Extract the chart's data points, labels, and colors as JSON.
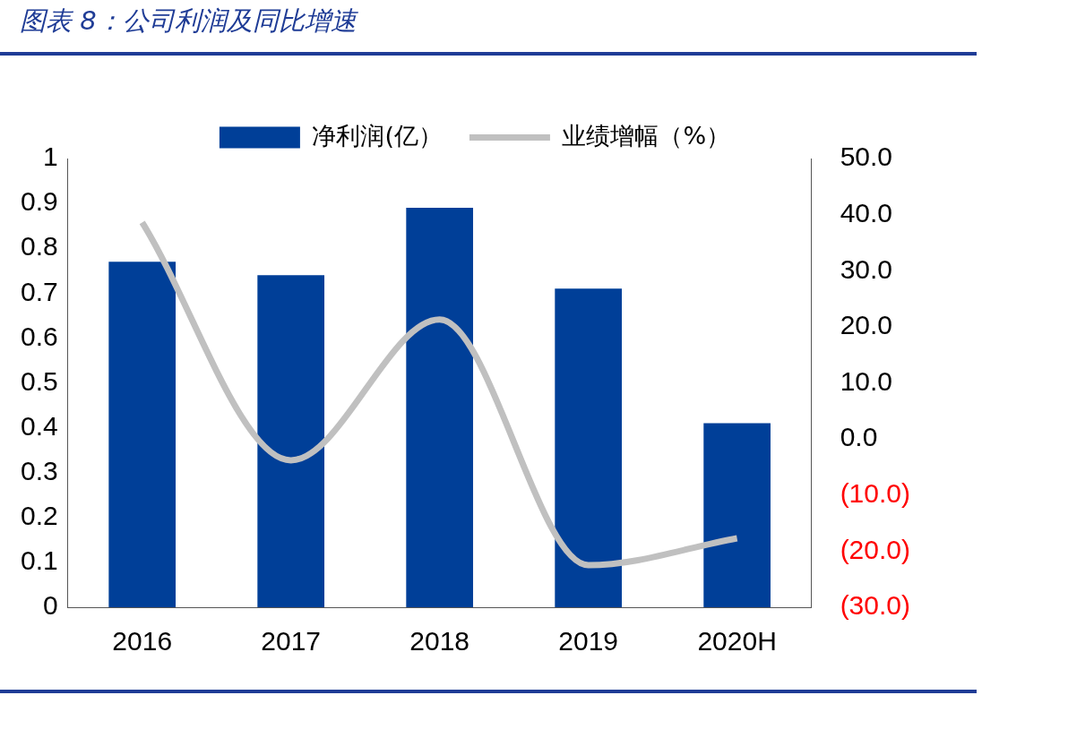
{
  "chart_data": {
    "type": "bar",
    "title": "图表 8：公司利润及同比增速",
    "categories": [
      "2016",
      "2017",
      "2018",
      "2019",
      "2020H"
    ],
    "series": [
      {
        "name": "净利润(亿）",
        "color": "#003f98",
        "values": [
          0.77,
          0.74,
          0.89,
          0.71,
          0.41
        ]
      },
      {
        "name": "业绩增幅（%）",
        "type": "line",
        "axis": "y2",
        "color": "#c0c0c0",
        "values": [
          38.6,
          -3.8,
          21.3,
          -22.5,
          -17.7
        ]
      }
    ],
    "ylim": [
      0,
      1
    ],
    "yticks": [
      0,
      0.1,
      0.2,
      0.3,
      0.4,
      0.5,
      0.6,
      0.7,
      0.8,
      0.9,
      1
    ],
    "y2lim": [
      -30,
      50
    ],
    "y2ticks": [
      {
        "value": -30,
        "label": "(30.0)"
      },
      {
        "value": -20,
        "label": "(20.0)"
      },
      {
        "value": -10,
        "label": "(10.0)"
      },
      {
        "value": 0,
        "label": "0.0"
      },
      {
        "value": 10,
        "label": "10.0"
      },
      {
        "value": 20,
        "label": "20.0"
      },
      {
        "value": 30,
        "label": "30.0"
      },
      {
        "value": 40,
        "label": "40.0"
      },
      {
        "value": 50,
        "label": "50.0"
      }
    ],
    "legend": "top"
  }
}
